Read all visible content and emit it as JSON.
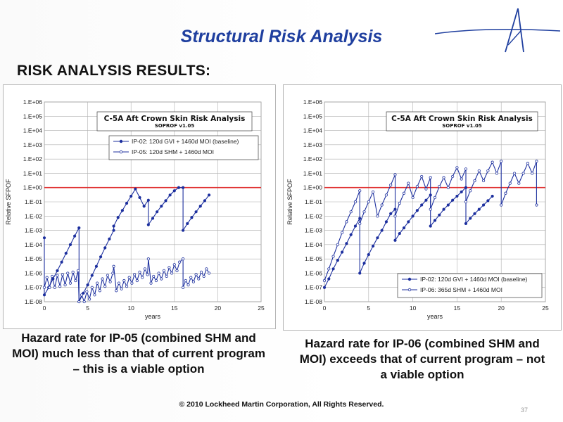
{
  "slide": {
    "title": "Structural Risk Analysis",
    "section_heading": "RISK ANALYSIS RESULTS:",
    "caption_left": "Hazard rate for IP-05 (combined SHM and MOI) much less than that of current program – this is a viable option",
    "caption_right": "Hazard rate for IP-06 (combined SHM and MOI) exceeds that of current program – not a viable option",
    "copyright": "© 2010 Lockheed Martin Corporation, All Rights Reserved.",
    "page_number": "37"
  },
  "colors": {
    "title": "#1f3f9f",
    "series": "#1c2f9e",
    "threshold": "#e03030",
    "grid": "#b0b0b0"
  },
  "chart_data": [
    {
      "type": "line",
      "title": "C-5A Aft Crown Skin Risk Analysis",
      "subtitle": "SOPROF v1.05",
      "xlabel": "years",
      "ylabel": "Relative SFPOF",
      "xlim": [
        0,
        25
      ],
      "ylim": [
        1e-08,
        1000000.0
      ],
      "yscale": "log",
      "grid": true,
      "legend_position": "top-left",
      "x_ticks": [
        0,
        5,
        10,
        15,
        20,
        25
      ],
      "y_ticks": [
        "1.E-08",
        "1.E-07",
        "1.E-06",
        "1.E-05",
        "1.E-04",
        "1.E-03",
        "1.E-02",
        "1.E-01",
        "1.E+00",
        "1.E+01",
        "1.E+02",
        "1.E+03",
        "1.E+04",
        "1.E+05",
        "1.E+06"
      ],
      "threshold": 1.0,
      "series": [
        {
          "name": "IP-02: 120d GVI + 1460d MOI (baseline)",
          "marker": "filled",
          "points": [
            [
              0,
              0.0003
            ],
            [
              0,
              3e-08
            ],
            [
              0.5,
              1e-07
            ],
            [
              1,
              4e-07
            ],
            [
              1.5,
              1.5e-06
            ],
            [
              2,
              6e-06
            ],
            [
              2.5,
              2.5e-05
            ],
            [
              3,
              0.0001
            ],
            [
              3.5,
              0.0004
            ],
            [
              4,
              0.0015
            ],
            [
              4,
              1e-08
            ],
            [
              4.5,
              4e-08
            ],
            [
              5,
              1.5e-07
            ],
            [
              5.5,
              7e-07
            ],
            [
              6,
              3e-06
            ],
            [
              6.5,
              1.4e-05
            ],
            [
              7,
              6e-05
            ],
            [
              7.5,
              0.00025
            ],
            [
              8,
              0.001
            ],
            [
              8,
              0.002
            ],
            [
              8.5,
              0.008
            ],
            [
              9,
              0.025
            ],
            [
              9.5,
              0.08
            ],
            [
              10,
              0.25
            ],
            [
              10.5,
              0.8
            ],
            [
              11,
              0.2
            ],
            [
              11.5,
              0.05
            ],
            [
              12,
              0.13
            ],
            [
              12,
              0.0025
            ],
            [
              12.5,
              0.007
            ],
            [
              13,
              0.02
            ],
            [
              13.5,
              0.05
            ],
            [
              14,
              0.12
            ],
            [
              14.5,
              0.3
            ],
            [
              15,
              0.6
            ],
            [
              15.5,
              1
            ],
            [
              16,
              1
            ],
            [
              16,
              0.001
            ],
            [
              16.5,
              0.003
            ],
            [
              17,
              0.008
            ],
            [
              17.5,
              0.02
            ],
            [
              18,
              0.05
            ],
            [
              18.5,
              0.12
            ],
            [
              19,
              0.3
            ]
          ],
          "_note": "approximate readings"
        },
        {
          "name": "IP-05: 120d SHM + 1460d MOI",
          "marker": "open",
          "points": [
            [
              0,
              1e-07
            ],
            [
              0.3,
              5e-07
            ],
            [
              0.6,
              1e-07
            ],
            [
              0.9,
              6e-07
            ],
            [
              1.2,
              1e-07
            ],
            [
              1.5,
              7e-07
            ],
            [
              1.8,
              1.2e-07
            ],
            [
              2.1,
              8e-07
            ],
            [
              2.4,
              1.5e-07
            ],
            [
              2.7,
              1e-06
            ],
            [
              3,
              2e-07
            ],
            [
              3.3,
              1.2e-06
            ],
            [
              3.6,
              3e-07
            ],
            [
              3.9,
              1.5e-06
            ],
            [
              4,
              1e-08
            ],
            [
              4.3,
              3e-08
            ],
            [
              4.6,
              1e-08
            ],
            [
              4.9,
              5e-08
            ],
            [
              5.2,
              1.5e-08
            ],
            [
              5.5,
              1e-07
            ],
            [
              5.8,
              3e-08
            ],
            [
              6.1,
              2e-07
            ],
            [
              6.4,
              6e-08
            ],
            [
              6.7,
              4e-07
            ],
            [
              7,
              1.2e-07
            ],
            [
              7.3,
              7e-07
            ],
            [
              7.6,
              2.5e-07
            ],
            [
              7.9,
              1e-06
            ],
            [
              8,
              3e-06
            ],
            [
              8.3,
              6e-08
            ],
            [
              8.6,
              2e-07
            ],
            [
              8.9,
              8e-08
            ],
            [
              9.2,
              3e-07
            ],
            [
              9.5,
              1.2e-07
            ],
            [
              9.8,
              5e-07
            ],
            [
              10.1,
              2e-07
            ],
            [
              10.4,
              8e-07
            ],
            [
              10.7,
              3e-07
            ],
            [
              11,
              1.2e-06
            ],
            [
              11.3,
              5e-07
            ],
            [
              11.6,
              2e-06
            ],
            [
              11.9,
              8e-07
            ],
            [
              12,
              1e-05
            ],
            [
              12.3,
              2e-07
            ],
            [
              12.6,
              6e-07
            ],
            [
              12.9,
              3e-07
            ],
            [
              13.2,
              1e-06
            ],
            [
              13.5,
              4e-07
            ],
            [
              13.8,
              1.5e-06
            ],
            [
              14.1,
              6e-07
            ],
            [
              14.4,
              2.5e-06
            ],
            [
              14.7,
              1e-06
            ],
            [
              15,
              4e-06
            ],
            [
              15.3,
              1.5e-06
            ],
            [
              15.6,
              6e-06
            ],
            [
              16,
              1e-05
            ],
            [
              16,
              1e-07
            ],
            [
              16.3,
              3e-07
            ],
            [
              16.6,
              1.5e-07
            ],
            [
              16.9,
              5e-07
            ],
            [
              17.2,
              2.5e-07
            ],
            [
              17.5,
              8e-07
            ],
            [
              17.8,
              4e-07
            ],
            [
              18.1,
              1.2e-06
            ],
            [
              18.4,
              6e-07
            ],
            [
              18.7,
              2e-06
            ],
            [
              19,
              1e-06
            ]
          ],
          "_note": "approximate readings"
        }
      ]
    },
    {
      "type": "line",
      "title": "C-5A Aft Crown Skin Risk Analysis",
      "subtitle": "SOPROF v1.05",
      "xlabel": "years",
      "ylabel": "Relative SFPOF",
      "xlim": [
        0,
        25
      ],
      "ylim": [
        1e-08,
        1000000.0
      ],
      "yscale": "log",
      "grid": true,
      "legend_position": "bottom-right",
      "x_ticks": [
        0,
        5,
        10,
        15,
        20,
        25
      ],
      "y_ticks": [
        "1.E-08",
        "1.E-07",
        "1.E-06",
        "1.E-05",
        "1.E-04",
        "1.E-03",
        "1.E-02",
        "1.E-01",
        "1.E+00",
        "1.E+01",
        "1.E+02",
        "1.E+03",
        "1.E+04",
        "1.E+05",
        "1.E+06"
      ],
      "threshold": 1.0,
      "series": [
        {
          "name": "IP-02: 120d GVI + 1460d MOI (baseline)",
          "marker": "filled",
          "points": [
            [
              0,
              1e-07
            ],
            [
              0.5,
              4e-07
            ],
            [
              1,
              2e-06
            ],
            [
              1.5,
              8e-06
            ],
            [
              2,
              3e-05
            ],
            [
              2.5,
              0.00012
            ],
            [
              3,
              0.0005
            ],
            [
              3.5,
              0.002
            ],
            [
              4,
              0.007
            ],
            [
              4,
              1e-06
            ],
            [
              4.5,
              5e-06
            ],
            [
              5,
              2e-05
            ],
            [
              5.5,
              8e-05
            ],
            [
              6,
              0.0003
            ],
            [
              6.5,
              0.001
            ],
            [
              7,
              0.004
            ],
            [
              7.5,
              0.015
            ],
            [
              8,
              0.03
            ],
            [
              8,
              0.0002
            ],
            [
              8.5,
              0.0006
            ],
            [
              9,
              0.0015
            ],
            [
              9.5,
              0.004
            ],
            [
              10,
              0.01
            ],
            [
              10.5,
              0.025
            ],
            [
              11,
              0.06
            ],
            [
              11.5,
              0.13
            ],
            [
              12,
              0.3
            ],
            [
              12,
              0.002
            ],
            [
              12.5,
              0.005
            ],
            [
              13,
              0.012
            ],
            [
              13.5,
              0.03
            ],
            [
              14,
              0.06
            ],
            [
              14.5,
              0.13
            ],
            [
              15,
              0.25
            ],
            [
              15.5,
              0.5
            ],
            [
              16,
              1
            ],
            [
              16,
              0.003
            ],
            [
              16.5,
              0.007
            ],
            [
              17,
              0.015
            ],
            [
              17.5,
              0.03
            ],
            [
              18,
              0.06
            ],
            [
              18.5,
              0.12
            ],
            [
              19,
              0.25
            ]
          ],
          "_note": "approximate readings"
        },
        {
          "name": "IP-06: 365d SHM + 1460d MOI",
          "marker": "open",
          "points": [
            [
              0,
              3e-07
            ],
            [
              0.5,
              2e-06
            ],
            [
              1,
              1.5e-05
            ],
            [
              1.5,
              0.0001
            ],
            [
              2,
              0.0007
            ],
            [
              2.5,
              0.004
            ],
            [
              3,
              0.02
            ],
            [
              3.5,
              0.1
            ],
            [
              4,
              0.6
            ],
            [
              4,
              0.003
            ],
            [
              4.5,
              0.02
            ],
            [
              5,
              0.1
            ],
            [
              5.5,
              0.5
            ],
            [
              6,
              0.01
            ],
            [
              6.5,
              0.06
            ],
            [
              7,
              0.3
            ],
            [
              7.5,
              1.5
            ],
            [
              8,
              8
            ],
            [
              8,
              0.01
            ],
            [
              8.5,
              0.08
            ],
            [
              9,
              0.4
            ],
            [
              9.5,
              2
            ],
            [
              10,
              0.2
            ],
            [
              10.5,
              1.2
            ],
            [
              11,
              6
            ],
            [
              11.5,
              0.8
            ],
            [
              12,
              5
            ],
            [
              12,
              0.03
            ],
            [
              12.5,
              0.2
            ],
            [
              13,
              1.2
            ],
            [
              13.5,
              5
            ],
            [
              14,
              1
            ],
            [
              14.5,
              6
            ],
            [
              15,
              25.0
            ],
            [
              15.5,
              4
            ],
            [
              16,
              20.0
            ],
            [
              16,
              0.1
            ],
            [
              16.5,
              0.6
            ],
            [
              17,
              3
            ],
            [
              17.5,
              15.0
            ],
            [
              18,
              3
            ],
            [
              18.5,
              15.0
            ],
            [
              19,
              60.0
            ],
            [
              19.5,
              10.0
            ],
            [
              20,
              70.0
            ],
            [
              20,
              0.06
            ],
            [
              20.5,
              0.4
            ],
            [
              21,
              2
            ],
            [
              21.5,
              10.0
            ],
            [
              22,
              2
            ],
            [
              22.5,
              10.0
            ],
            [
              23,
              50.0
            ],
            [
              23.5,
              10.0
            ],
            [
              24,
              70.0
            ],
            [
              24,
              0.06
            ]
          ],
          "_note": "approximate readings"
        }
      ]
    }
  ]
}
